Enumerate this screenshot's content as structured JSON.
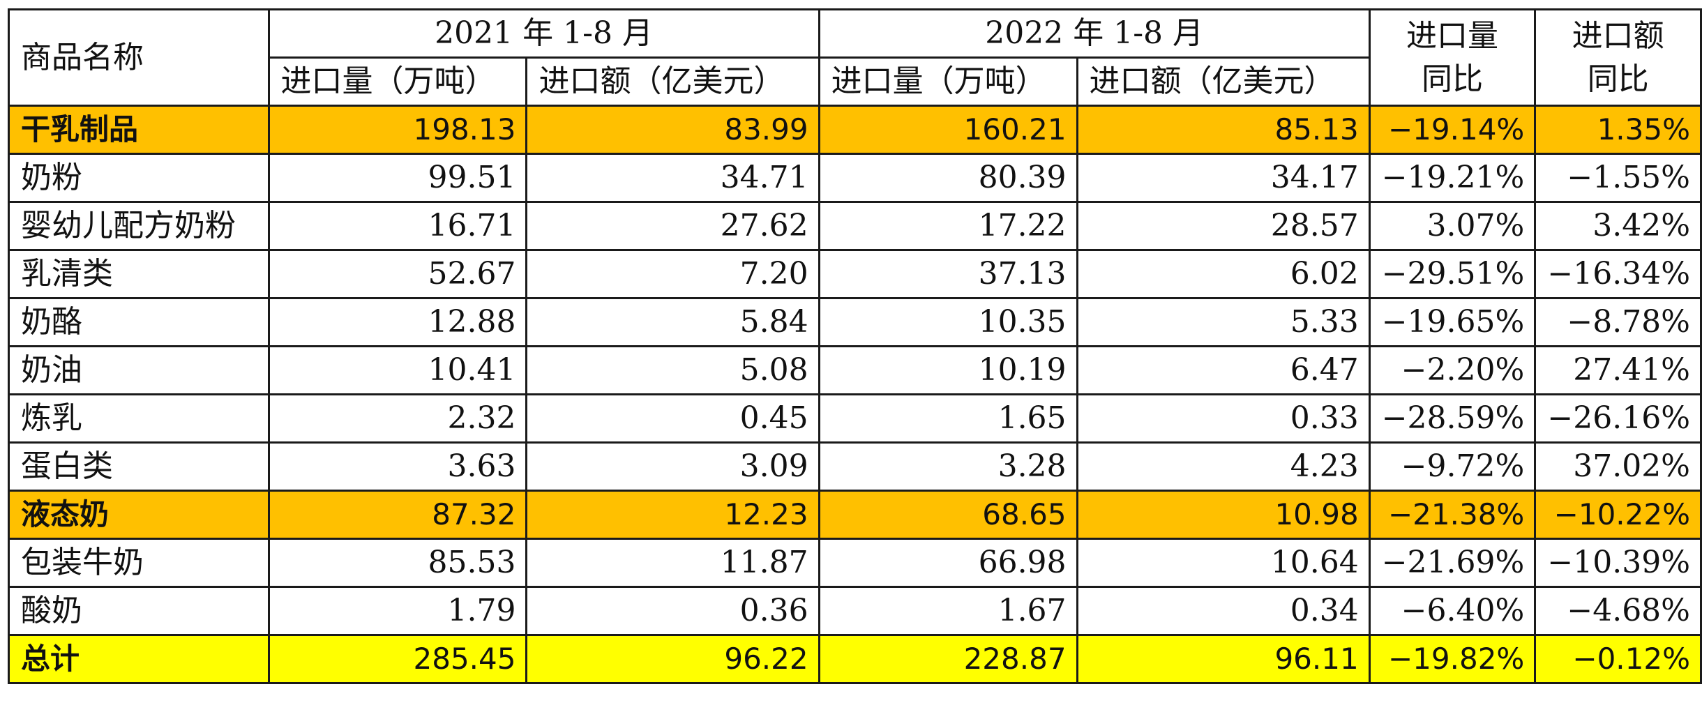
{
  "header": {
    "name_label": "商品名称",
    "period_2021": "2021 年 1-8 月",
    "period_2022": "2022 年 1-8 月",
    "qty_label": "进口量（万吨）",
    "val_label": "进口额（亿美元）",
    "qty_yoy_line1": "进口量",
    "qty_yoy_line2": "同比",
    "val_yoy_line1": "进口额",
    "val_yoy_line2": "同比"
  },
  "rows": [
    {
      "name": "干乳制品",
      "q21": "198.13",
      "v21": "83.99",
      "q22": "160.21",
      "v22": "85.13",
      "qy": "−19.14%",
      "vy": "1.35%",
      "kind": "sub"
    },
    {
      "name": "奶粉",
      "q21": "99.51",
      "v21": "34.71",
      "q22": "80.39",
      "v22": "34.17",
      "qy": "−19.21%",
      "vy": "−1.55%",
      "kind": "item"
    },
    {
      "name": "婴幼儿配方奶粉",
      "q21": "16.71",
      "v21": "27.62",
      "q22": "17.22",
      "v22": "28.57",
      "qy": "3.07%",
      "vy": "3.42%",
      "kind": "item"
    },
    {
      "name": "乳清类",
      "q21": "52.67",
      "v21": "7.20",
      "q22": "37.13",
      "v22": "6.02",
      "qy": "−29.51%",
      "vy": "−16.34%",
      "kind": "item"
    },
    {
      "name": "奶酪",
      "q21": "12.88",
      "v21": "5.84",
      "q22": "10.35",
      "v22": "5.33",
      "qy": "−19.65%",
      "vy": "−8.78%",
      "kind": "item"
    },
    {
      "name": "奶油",
      "q21": "10.41",
      "v21": "5.08",
      "q22": "10.19",
      "v22": "6.47",
      "qy": "−2.20%",
      "vy": "27.41%",
      "kind": "item"
    },
    {
      "name": "炼乳",
      "q21": "2.32",
      "v21": "0.45",
      "q22": "1.65",
      "v22": "0.33",
      "qy": "−28.59%",
      "vy": "−26.16%",
      "kind": "item"
    },
    {
      "name": "蛋白类",
      "q21": "3.63",
      "v21": "3.09",
      "q22": "3.28",
      "v22": "4.23",
      "qy": "−9.72%",
      "vy": "37.02%",
      "kind": "item"
    },
    {
      "name": "液态奶",
      "q21": "87.32",
      "v21": "12.23",
      "q22": "68.65",
      "v22": "10.98",
      "qy": "−21.38%",
      "vy": "−10.22%",
      "kind": "sub"
    },
    {
      "name": "包装牛奶",
      "q21": "85.53",
      "v21": "11.87",
      "q22": "66.98",
      "v22": "10.64",
      "qy": "−21.69%",
      "vy": "−10.39%",
      "kind": "item"
    },
    {
      "name": "酸奶",
      "q21": "1.79",
      "v21": "0.36",
      "q22": "1.67",
      "v22": "0.34",
      "qy": "−6.40%",
      "vy": "−4.68%",
      "kind": "item"
    },
    {
      "name": "总计",
      "q21": "285.45",
      "v21": "96.22",
      "q22": "228.87",
      "v22": "96.11",
      "qy": "−19.82%",
      "vy": "−0.12%",
      "kind": "total"
    }
  ],
  "colors": {
    "subtotal_fill": "#FFC000",
    "total_fill": "#FFFF00",
    "border": "#1a1a1a"
  }
}
